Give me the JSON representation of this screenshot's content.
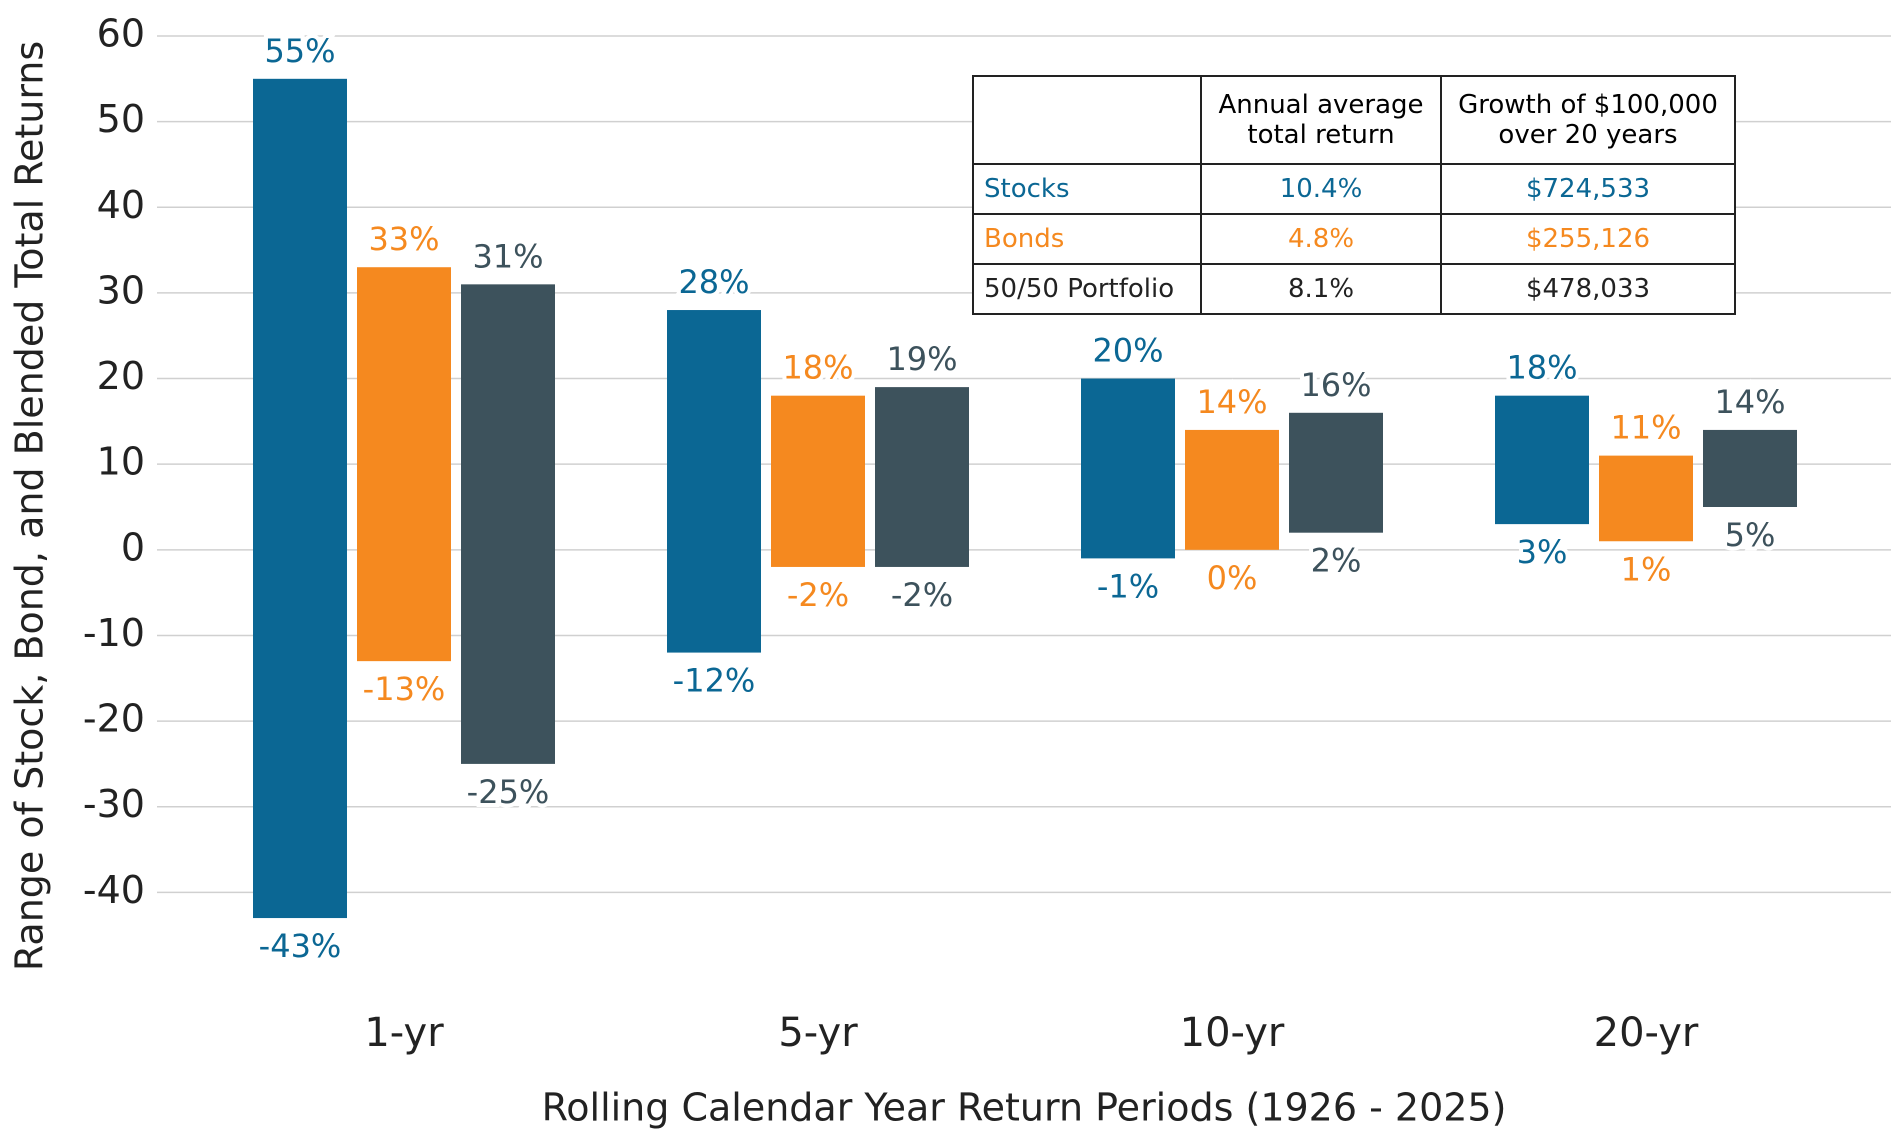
{
  "chart_data": {
    "type": "range_bar",
    "y_label": "Range of Stock, Bond, and Blended Total Returns",
    "x_label": "Rolling Calendar Year Return Periods (1926 - 2025)",
    "categories": [
      "1-yr",
      "5-yr",
      "10-yr",
      "20-yr"
    ],
    "series": [
      {
        "name": "Stocks",
        "color": "#0b6794",
        "low": [
          -43,
          -12,
          -1,
          3
        ],
        "high": [
          55,
          28,
          20,
          18
        ],
        "low_labels": [
          "-43%",
          "-12%",
          "-1%",
          "3%"
        ],
        "high_labels": [
          "55%",
          "28%",
          "20%",
          "18%"
        ]
      },
      {
        "name": "Bonds",
        "color": "#f5891f",
        "low": [
          -13,
          -2,
          0,
          1
        ],
        "high": [
          33,
          18,
          14,
          11
        ],
        "low_labels": [
          "-13%",
          "-2%",
          "0%",
          "1%"
        ],
        "high_labels": [
          "33%",
          "18%",
          "14%",
          "11%"
        ]
      },
      {
        "name": "50/50 Portfolio",
        "color": "#3d525c",
        "low": [
          -25,
          -2,
          2,
          5
        ],
        "high": [
          31,
          19,
          16,
          14
        ],
        "low_labels": [
          "-25%",
          "-2%",
          "2%",
          "5%"
        ],
        "high_labels": [
          "31%",
          "19%",
          "16%",
          "14%"
        ]
      }
    ],
    "ylim": [
      -50,
      60
    ],
    "yticks": [
      -40,
      -30,
      -20,
      -10,
      0,
      10,
      20,
      30,
      40,
      50,
      60
    ],
    "grid": true
  },
  "table": {
    "header": [
      "Annual average total return",
      "Growth of $100,000 over 20 years"
    ],
    "rows": [
      [
        "10.4%",
        "$724,533"
      ],
      [
        "4.8%",
        "$255,126"
      ],
      [
        "8.1%",
        "$478,033"
      ]
    ]
  }
}
